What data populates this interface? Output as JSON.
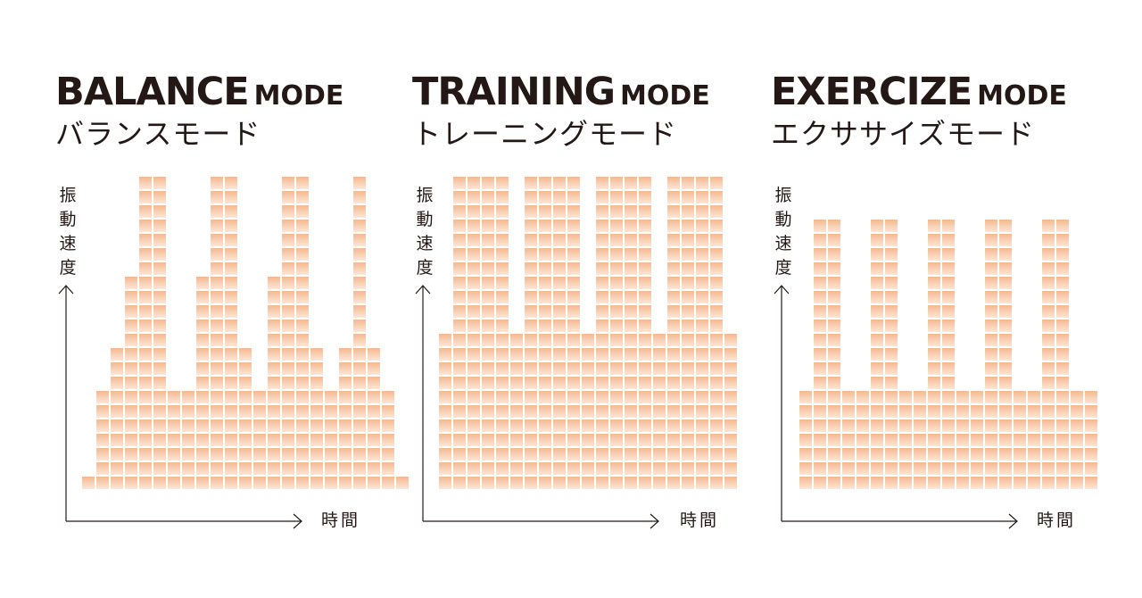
{
  "chart_data": [
    {
      "type": "bar",
      "title": "BALANCE",
      "title_suffix": "MODE",
      "subtitle": "バランスモード",
      "ylabel": "振動速度",
      "xlabel": "時間",
      "values": [
        1,
        7,
        10,
        15,
        22,
        22,
        7,
        7,
        15,
        22,
        22,
        10,
        7,
        15,
        22,
        22,
        10,
        7,
        10,
        22,
        10,
        7,
        1
      ],
      "ylim": [
        0,
        22
      ],
      "grid": false,
      "bar_color": "#f4b891"
    },
    {
      "type": "bar",
      "title": "TRAINING",
      "title_suffix": "MODE",
      "subtitle": "トレーニングモード",
      "ylabel": "振動速度",
      "xlabel": "時間",
      "values": [
        11,
        22,
        22,
        22,
        22,
        11,
        22,
        22,
        22,
        22,
        11,
        22,
        22,
        22,
        22,
        11,
        22,
        22,
        22,
        22,
        11
      ],
      "ylim": [
        0,
        22
      ],
      "grid": false,
      "bar_color": "#f4b891"
    },
    {
      "type": "bar",
      "title": "EXERCIZE",
      "title_suffix": "MODE",
      "subtitle": "エクササイズモード",
      "ylabel": "振動速度",
      "xlabel": "時間",
      "values": [
        7,
        19,
        19,
        7,
        7,
        19,
        19,
        7,
        7,
        19,
        19,
        7,
        7,
        19,
        19,
        7,
        7,
        19,
        19,
        7,
        7
      ],
      "ylim": [
        0,
        22
      ],
      "grid": false,
      "bar_color": "#f4b891"
    }
  ],
  "colors": {
    "text": "#231815",
    "axis": "#231815",
    "bar_top": "#f4b891",
    "bar_bottom": "#fde7d6"
  }
}
